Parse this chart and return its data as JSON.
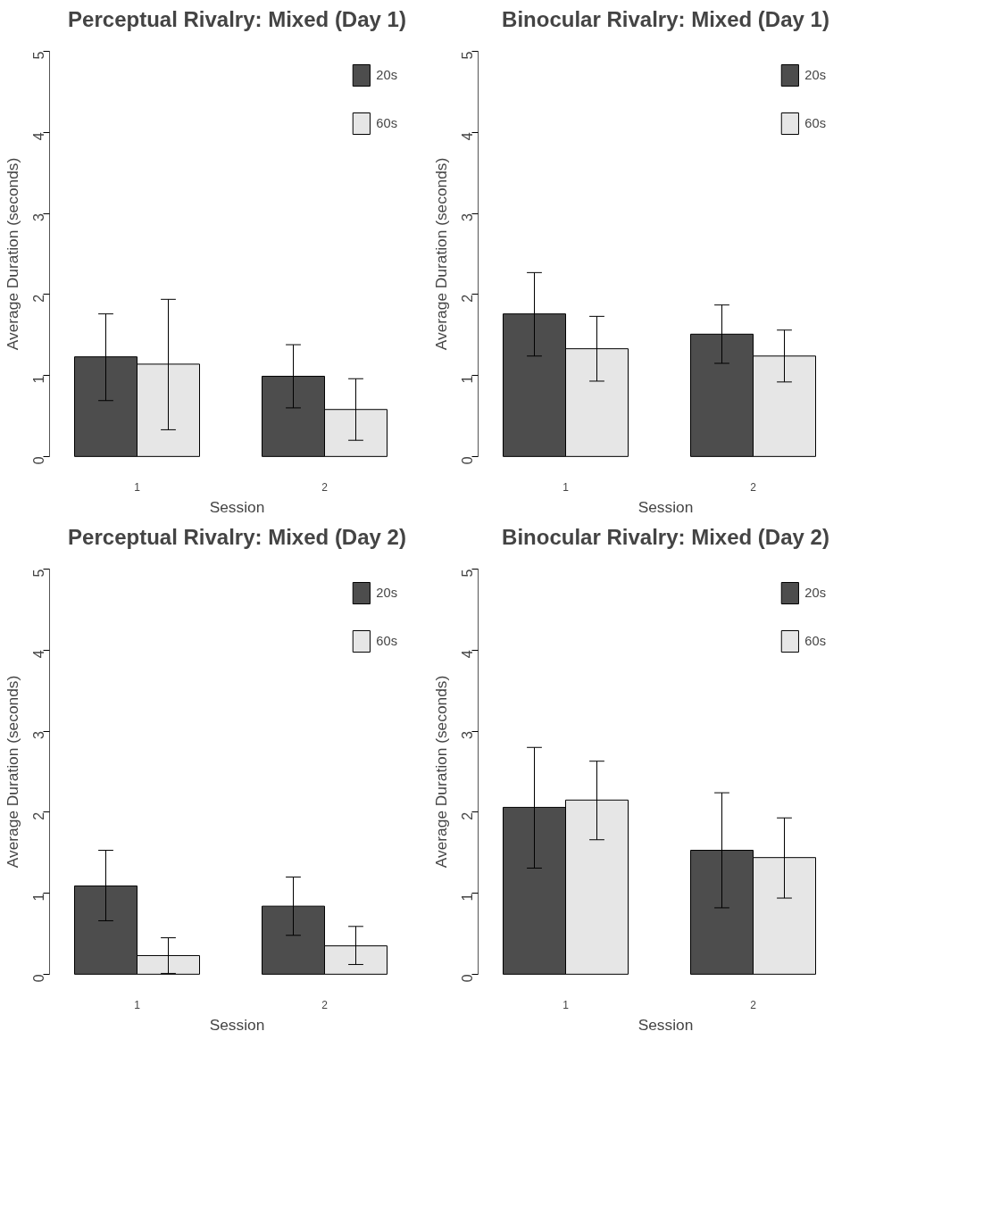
{
  "chart_data": [
    {
      "type": "bar",
      "title": "Perceptual Rivalry: Mixed (Day 1)",
      "xlabel": "Session",
      "ylabel": "Average Duration (seconds)",
      "categories": [
        "1",
        "2"
      ],
      "ylim": [
        0,
        5
      ],
      "yticks": [
        0,
        1,
        2,
        3,
        4,
        5
      ],
      "legend": "top right",
      "series": [
        {
          "name": "20s",
          "color": "#4d4d4d",
          "values": [
            1.23,
            0.99
          ],
          "errors": [
            [
              0.69,
              1.76
            ],
            [
              0.6,
              1.38
            ]
          ]
        },
        {
          "name": "60s",
          "color": "#e6e6e6",
          "values": [
            1.14,
            0.58
          ],
          "errors": [
            [
              0.33,
              1.94
            ],
            [
              0.2,
              0.96
            ]
          ]
        }
      ]
    },
    {
      "type": "bar",
      "title": "Binocular Rivalry: Mixed (Day 1)",
      "xlabel": "Session",
      "ylabel": "Average Duration (seconds)",
      "categories": [
        "1",
        "2"
      ],
      "ylim": [
        0,
        5
      ],
      "yticks": [
        0,
        1,
        2,
        3,
        4,
        5
      ],
      "legend": "top right",
      "series": [
        {
          "name": "20s",
          "color": "#4d4d4d",
          "values": [
            1.76,
            1.51
          ],
          "errors": [
            [
              1.24,
              2.27
            ],
            [
              1.15,
              1.87
            ]
          ]
        },
        {
          "name": "60s",
          "color": "#e6e6e6",
          "values": [
            1.33,
            1.24
          ],
          "errors": [
            [
              0.93,
              1.73
            ],
            [
              0.92,
              1.56
            ]
          ]
        }
      ]
    },
    {
      "type": "bar",
      "title": "Perceptual Rivalry: Mixed (Day 2)",
      "xlabel": "Session",
      "ylabel": "Average Duration (seconds)",
      "categories": [
        "1",
        "2"
      ],
      "ylim": [
        0,
        5
      ],
      "yticks": [
        0,
        1,
        2,
        3,
        4,
        5
      ],
      "legend": "top right",
      "series": [
        {
          "name": "20s",
          "color": "#4d4d4d",
          "values": [
            1.09,
            0.84
          ],
          "errors": [
            [
              0.66,
              1.53
            ],
            [
              0.48,
              1.2
            ]
          ]
        },
        {
          "name": "60s",
          "color": "#e6e6e6",
          "values": [
            0.23,
            0.35
          ],
          "errors": [
            [
              0.01,
              0.45
            ],
            [
              0.12,
              0.59
            ]
          ]
        }
      ]
    },
    {
      "type": "bar",
      "title": "Binocular Rivalry: Mixed (Day 2)",
      "xlabel": "Session",
      "ylabel": "Average Duration (seconds)",
      "categories": [
        "1",
        "2"
      ],
      "ylim": [
        0,
        5
      ],
      "yticks": [
        0,
        1,
        2,
        3,
        4,
        5
      ],
      "legend": "top right",
      "series": [
        {
          "name": "20s",
          "color": "#4d4d4d",
          "values": [
            2.06,
            1.53
          ],
          "errors": [
            [
              1.31,
              2.8
            ],
            [
              0.82,
              2.24
            ]
          ]
        },
        {
          "name": "60s",
          "color": "#e6e6e6",
          "values": [
            2.15,
            1.44
          ],
          "errors": [
            [
              1.66,
              2.63
            ],
            [
              0.94,
              1.93
            ]
          ]
        }
      ]
    }
  ]
}
